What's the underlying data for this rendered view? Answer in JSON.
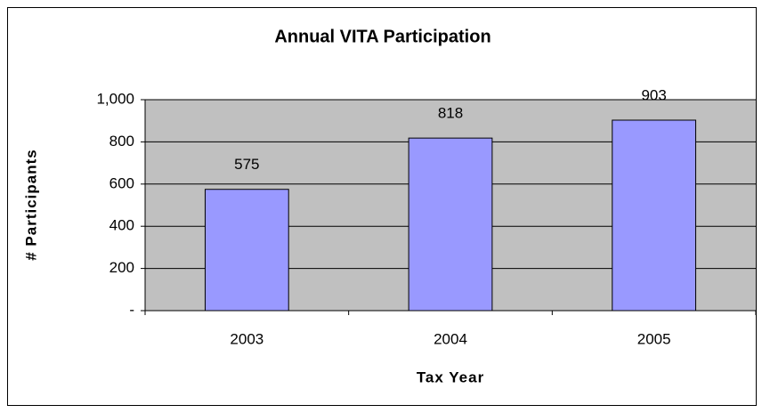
{
  "chart_data": {
    "type": "bar",
    "title": "Annual VITA Participation",
    "x_label": "Tax Year",
    "y_label": "# Participants",
    "categories": [
      "2003",
      "2004",
      "2005"
    ],
    "values": [
      575,
      818,
      903
    ],
    "color": "#9999ff",
    "ylim": [
      0,
      1000
    ],
    "yticks": [
      {
        "value": 0,
        "label": "-"
      },
      200,
      400,
      600,
      800,
      {
        "value": 1000,
        "label": "1,000"
      }
    ],
    "grid": true
  }
}
